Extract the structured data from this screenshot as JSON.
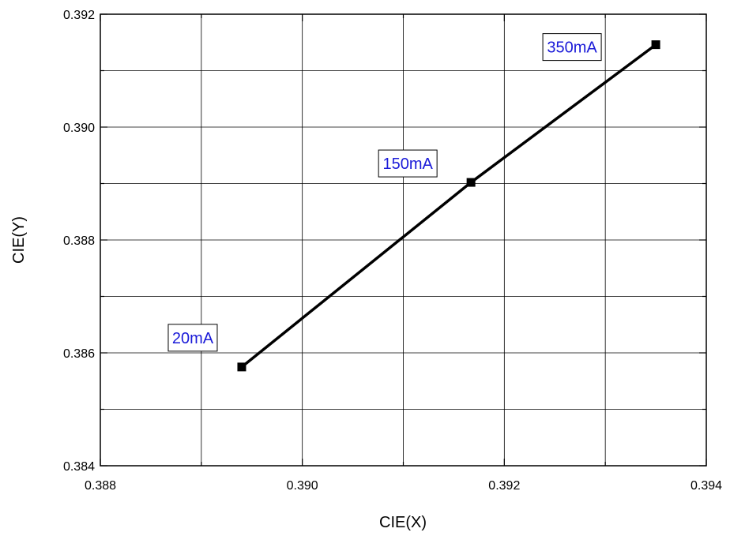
{
  "chart_data": {
    "type": "line",
    "title": "",
    "xlabel": "CIE(X)",
    "ylabel": "CIE(Y)",
    "xlim": [
      0.388,
      0.394
    ],
    "ylim": [
      0.384,
      0.392
    ],
    "x_ticks": [
      "0.388",
      "0.390",
      "0.392",
      "0.394"
    ],
    "y_ticks": [
      "0.384",
      "0.386",
      "0.388",
      "0.390",
      "0.392"
    ],
    "grid": true,
    "series": [
      {
        "x": [
          0.3894,
          0.39167,
          0.3935
        ],
        "y": [
          0.38575,
          0.38902,
          0.39146
        ],
        "point_labels": [
          "20mA",
          "150mA",
          "350mA"
        ]
      }
    ],
    "colors": {
      "line": "#000000",
      "marker": "#000000",
      "annotation_text": "#1a1ad8",
      "grid": "#000000"
    }
  }
}
